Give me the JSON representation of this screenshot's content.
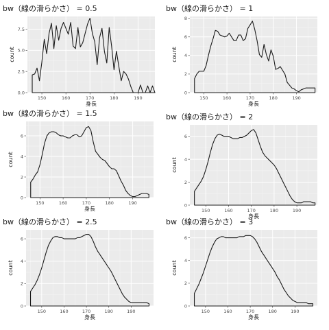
{
  "chart_data": [
    {
      "type": "area",
      "title": "bw（線の滑らかさ） = 0.5",
      "xlabel": "身長",
      "ylabel": "count",
      "xlim": [
        144,
        197
      ],
      "ylim": [
        0,
        9
      ],
      "x_ticks": [
        150,
        160,
        170,
        180,
        190
      ],
      "y_ticks": [
        0,
        2.5,
        5,
        7.5
      ],
      "y_tick_labels": [
        "0.0",
        "2.5",
        "5.0",
        "7.5"
      ],
      "grid": true,
      "x": [
        146,
        146,
        147,
        148,
        149,
        150,
        151,
        152,
        153,
        154,
        155,
        156,
        157,
        158,
        159,
        160,
        161,
        162,
        163,
        164,
        165,
        166,
        167,
        168,
        169,
        170,
        171,
        172,
        173,
        174,
        175,
        176,
        177,
        178,
        179,
        180,
        181,
        182,
        183,
        184,
        185,
        186,
        187,
        188,
        189,
        190,
        191,
        192,
        193,
        194,
        195,
        196,
        197
      ],
      "values": [
        0,
        2.1,
        2.2,
        2.9,
        1.4,
        3.6,
        6.3,
        4.6,
        7.0,
        8.2,
        5.2,
        7.9,
        6.2,
        7.6,
        8.3,
        7.6,
        6.9,
        8.3,
        5.5,
        5.2,
        7.7,
        5.4,
        5.9,
        7.0,
        8.1,
        8.8,
        7.0,
        6.0,
        3.3,
        6.5,
        7.6,
        4.9,
        3.5,
        7.7,
        5.5,
        2.7,
        4.9,
        3.1,
        1.4,
        2.5,
        2.2,
        1.6,
        0.7,
        0.0,
        0.0,
        0.0,
        0.9,
        0.0,
        0.0,
        0.8,
        0.0,
        0.8,
        0.0
      ]
    },
    {
      "type": "area",
      "title": "bw（線の滑らかさ） = 1",
      "xlabel": "身長",
      "ylabel": "count",
      "xlim": [
        144,
        199
      ],
      "ylim": [
        0,
        8.2
      ],
      "x_ticks": [
        150,
        160,
        170,
        180,
        190
      ],
      "y_ticks": [
        0,
        2,
        4,
        6,
        8
      ],
      "grid": true,
      "x": [
        146,
        146,
        147,
        148,
        149,
        150,
        151,
        152,
        153,
        154,
        155,
        156,
        157,
        158,
        159,
        160,
        161,
        162,
        163,
        164,
        165,
        166,
        167,
        168,
        169,
        170,
        171,
        172,
        173,
        174,
        175,
        176,
        177,
        178,
        179,
        180,
        181,
        182,
        183,
        184,
        185,
        186,
        187,
        188,
        189,
        190,
        191,
        192,
        193,
        194,
        195,
        196,
        197,
        198
      ],
      "values": [
        0,
        1.5,
        2.0,
        2.3,
        2.3,
        2.3,
        2.9,
        4.0,
        5.0,
        5.8,
        6.7,
        6.6,
        6.2,
        6.1,
        6.0,
        6.1,
        6.4,
        6.0,
        5.6,
        5.6,
        6.2,
        6.2,
        5.6,
        5.8,
        6.9,
        7.3,
        7.7,
        6.8,
        5.6,
        4.1,
        3.8,
        5.2,
        4.1,
        3.4,
        4.6,
        3.9,
        2.5,
        2.6,
        2.8,
        2.4,
        2.0,
        1.1,
        0.8,
        0.5,
        0.4,
        0.2,
        0.1,
        0.3,
        0.4,
        0.5,
        0.5,
        0.5,
        0.5,
        0.5
      ]
    },
    {
      "type": "area",
      "title": "bw（線の滑らかさ） = 1.5",
      "xlabel": "身長",
      "ylabel": "count",
      "xlim": [
        144,
        199
      ],
      "ylim": [
        0,
        7.4
      ],
      "x_ticks": [
        150,
        160,
        170,
        180,
        190
      ],
      "y_ticks": [
        0,
        2,
        4,
        6
      ],
      "grid": true,
      "x": [
        146,
        146,
        147,
        148,
        149,
        150,
        151,
        152,
        153,
        154,
        155,
        156,
        157,
        158,
        159,
        160,
        161,
        162,
        163,
        164,
        165,
        166,
        167,
        168,
        169,
        170,
        171,
        172,
        173,
        174,
        175,
        176,
        177,
        178,
        179,
        180,
        181,
        182,
        183,
        184,
        185,
        186,
        187,
        188,
        189,
        190,
        191,
        192,
        193,
        194,
        195,
        196,
        197
      ],
      "values": [
        0,
        1.5,
        1.8,
        2.2,
        2.5,
        3.2,
        4.2,
        5.3,
        6.0,
        6.3,
        6.4,
        6.4,
        6.3,
        6.1,
        6.0,
        6.0,
        5.9,
        5.8,
        5.8,
        6.0,
        6.1,
        6.1,
        5.9,
        6.0,
        6.4,
        6.8,
        6.9,
        6.5,
        5.4,
        4.5,
        4.2,
        3.9,
        3.7,
        3.6,
        3.3,
        3.0,
        2.8,
        2.8,
        2.6,
        2.1,
        1.6,
        1.2,
        0.7,
        0.4,
        0.2,
        0.1,
        0.1,
        0.2,
        0.3,
        0.4,
        0.4,
        0.4,
        0.3
      ]
    },
    {
      "type": "area",
      "title": "bw（線の滑らかさ） = 2",
      "xlabel": "身長",
      "ylabel": "count",
      "xlim": [
        143,
        199
      ],
      "ylim": [
        0,
        7
      ],
      "x_ticks": [
        150,
        160,
        170,
        180,
        190
      ],
      "y_ticks": [
        0,
        2,
        4,
        6
      ],
      "grid": true,
      "x": [
        145,
        145,
        146,
        147,
        148,
        149,
        150,
        151,
        152,
        153,
        154,
        155,
        156,
        157,
        158,
        159,
        160,
        161,
        162,
        163,
        164,
        165,
        166,
        167,
        168,
        169,
        170,
        171,
        172,
        173,
        174,
        175,
        176,
        177,
        178,
        179,
        180,
        181,
        182,
        183,
        184,
        185,
        186,
        187,
        188,
        189,
        190,
        191,
        192,
        193,
        194,
        195,
        196,
        197,
        198
      ],
      "values": [
        0,
        1.2,
        1.5,
        1.8,
        2.1,
        2.5,
        3.1,
        3.8,
        4.6,
        5.3,
        5.8,
        6.1,
        6.2,
        6.1,
        6.0,
        6.0,
        6.0,
        5.9,
        5.8,
        5.8,
        5.8,
        5.9,
        5.9,
        6.0,
        6.1,
        6.3,
        6.5,
        6.6,
        6.3,
        5.7,
        5.1,
        4.6,
        4.3,
        4.1,
        3.9,
        3.7,
        3.5,
        3.2,
        2.8,
        2.4,
        2.0,
        1.6,
        1.2,
        0.8,
        0.5,
        0.3,
        0.2,
        0.2,
        0.2,
        0.3,
        0.3,
        0.3,
        0.3,
        0.2,
        0.2
      ]
    },
    {
      "type": "area",
      "title": "bw（線の滑らかさ） = 2.5",
      "xlabel": "身長",
      "ylabel": "count",
      "xlim": [
        143,
        200
      ],
      "ylim": [
        0,
        6.8
      ],
      "x_ticks": [
        150,
        160,
        170,
        180,
        190
      ],
      "y_ticks": [
        0,
        2,
        4,
        6
      ],
      "grid": true,
      "x": [
        145,
        145,
        146,
        147,
        148,
        149,
        150,
        151,
        152,
        153,
        154,
        155,
        156,
        157,
        158,
        159,
        160,
        161,
        162,
        163,
        164,
        165,
        166,
        167,
        168,
        169,
        170,
        171,
        172,
        173,
        174,
        175,
        176,
        177,
        178,
        179,
        180,
        181,
        182,
        183,
        184,
        185,
        186,
        187,
        188,
        189,
        190,
        191,
        192,
        193,
        194,
        195,
        196,
        197,
        198
      ],
      "values": [
        0,
        1.3,
        1.6,
        1.9,
        2.3,
        2.8,
        3.4,
        4.1,
        4.8,
        5.4,
        5.8,
        6.1,
        6.2,
        6.2,
        6.1,
        6.1,
        6.0,
        6.0,
        6.0,
        6.0,
        6.0,
        6.0,
        6.1,
        6.1,
        6.2,
        6.3,
        6.4,
        6.4,
        6.2,
        5.8,
        5.3,
        4.9,
        4.6,
        4.3,
        4.0,
        3.7,
        3.4,
        3.1,
        2.7,
        2.3,
        1.9,
        1.5,
        1.1,
        0.8,
        0.6,
        0.4,
        0.3,
        0.3,
        0.3,
        0.3,
        0.3,
        0.3,
        0.3,
        0.3,
        0.2
      ]
    },
    {
      "type": "area",
      "title": "bw（線の滑らかさ） = 3",
      "xlabel": "身長",
      "ylabel": "count",
      "xlim": [
        143,
        200
      ],
      "ylim": [
        0,
        6.7
      ],
      "x_ticks": [
        150,
        160,
        170,
        180,
        190
      ],
      "y_ticks": [
        0,
        2,
        4,
        6
      ],
      "grid": true,
      "x": [
        145,
        145,
        146,
        147,
        148,
        149,
        150,
        151,
        152,
        153,
        154,
        155,
        156,
        157,
        158,
        159,
        160,
        161,
        162,
        163,
        164,
        165,
        166,
        167,
        168,
        169,
        170,
        171,
        172,
        173,
        174,
        175,
        176,
        177,
        178,
        179,
        180,
        181,
        182,
        183,
        184,
        185,
        186,
        187,
        188,
        189,
        190,
        191,
        192,
        193,
        194,
        195,
        196,
        197,
        198
      ],
      "values": [
        0,
        1.1,
        1.5,
        1.9,
        2.4,
        2.9,
        3.5,
        4.1,
        4.7,
        5.2,
        5.6,
        5.9,
        6.0,
        6.1,
        6.1,
        6.0,
        6.0,
        6.0,
        6.0,
        6.0,
        6.0,
        6.1,
        6.1,
        6.1,
        6.2,
        6.2,
        6.2,
        6.1,
        5.9,
        5.6,
        5.2,
        4.8,
        4.5,
        4.2,
        3.9,
        3.6,
        3.3,
        3.0,
        2.6,
        2.3,
        1.9,
        1.5,
        1.2,
        0.9,
        0.7,
        0.5,
        0.4,
        0.3,
        0.3,
        0.3,
        0.3,
        0.3,
        0.2,
        0.2,
        0.2
      ]
    }
  ]
}
